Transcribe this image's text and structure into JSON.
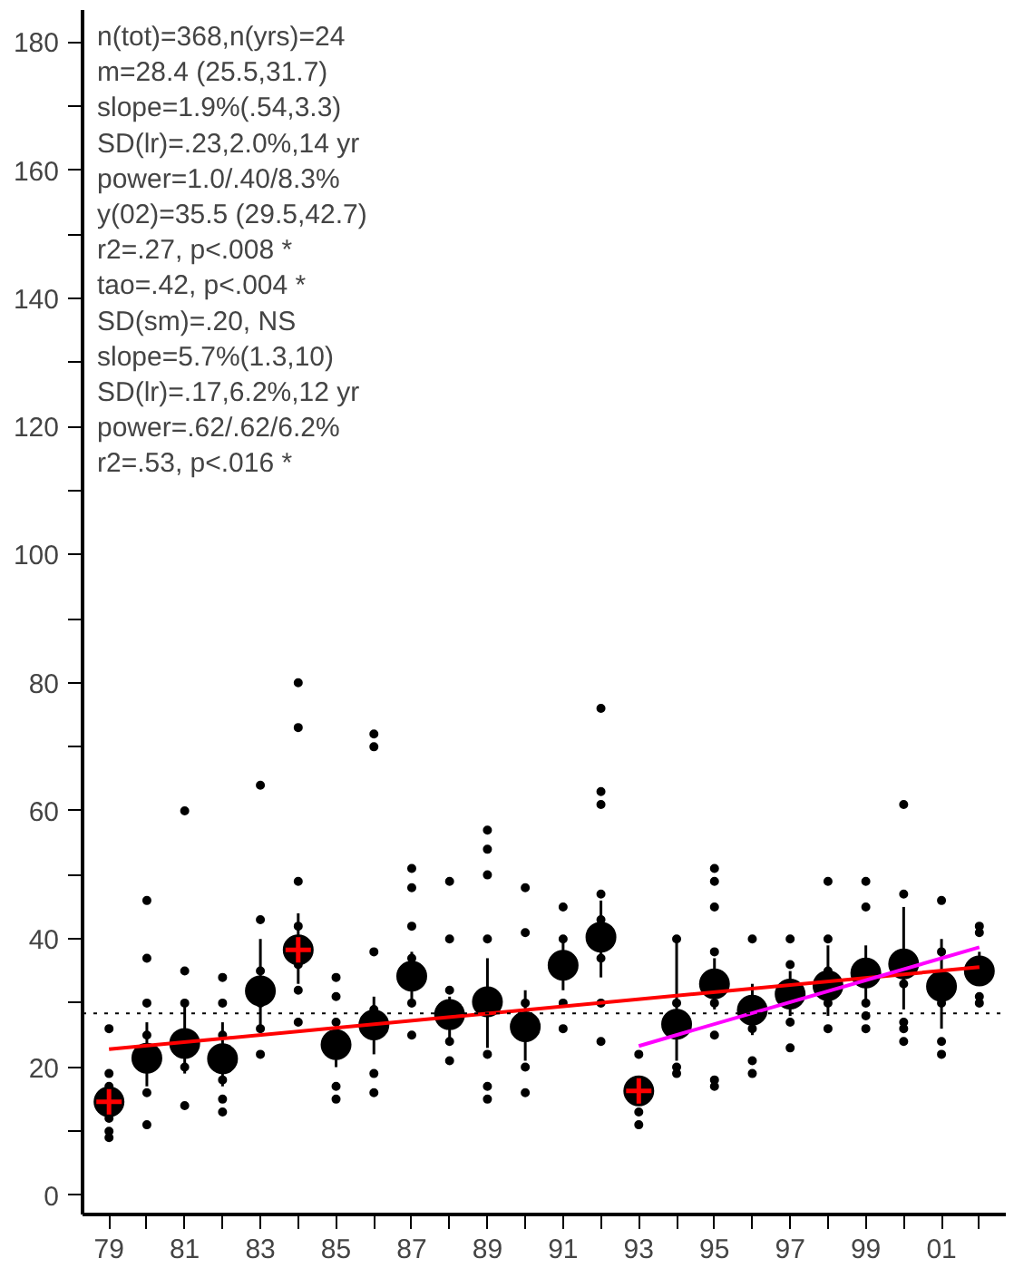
{
  "chart_data": {
    "type": "scatter",
    "annotations": [
      "n(tot)=368,n(yrs)=24",
      "m=28.4 (25.5,31.7)",
      "slope=1.9%(.54,3.3)",
      "SD(lr)=.23,2.0%,14 yr",
      "power=1.0/.40/8.3%",
      "y(02)=35.5 (29.5,42.7)",
      "r2=.27, p<.008 *",
      "tao=.42, p<.004 *",
      "SD(sm)=.20, NS",
      "slope=5.7%(1.3,10)",
      "SD(lr)=.17,6.2%,12 yr",
      "power=.62/.62/6.2%",
      "r2=.53, p<.016 *"
    ],
    "xlim": [
      1978.3,
      2002.7
    ],
    "ylim": [
      -3,
      185
    ],
    "xticks": [
      {
        "value": 1979,
        "label": "79"
      },
      {
        "value": 1980,
        "label": null
      },
      {
        "value": 1981,
        "label": "81"
      },
      {
        "value": 1982,
        "label": null
      },
      {
        "value": 1983,
        "label": "83"
      },
      {
        "value": 1984,
        "label": null
      },
      {
        "value": 1985,
        "label": "85"
      },
      {
        "value": 1986,
        "label": null
      },
      {
        "value": 1987,
        "label": "87"
      },
      {
        "value": 1988,
        "label": null
      },
      {
        "value": 1989,
        "label": "89"
      },
      {
        "value": 1990,
        "label": null
      },
      {
        "value": 1991,
        "label": "91"
      },
      {
        "value": 1992,
        "label": null
      },
      {
        "value": 1993,
        "label": "93"
      },
      {
        "value": 1994,
        "label": null
      },
      {
        "value": 1995,
        "label": "95"
      },
      {
        "value": 1996,
        "label": null
      },
      {
        "value": 1997,
        "label": "97"
      },
      {
        "value": 1998,
        "label": null
      },
      {
        "value": 1999,
        "label": "99"
      },
      {
        "value": 2000,
        "label": null
      },
      {
        "value": 2001,
        "label": "01"
      },
      {
        "value": 2002,
        "label": null
      }
    ],
    "yticks": [
      0,
      {
        "value": 10,
        "label": null
      },
      20,
      {
        "value": 30,
        "label": null
      },
      40,
      {
        "value": 50,
        "label": null
      },
      60,
      {
        "value": 70,
        "label": null
      },
      80,
      {
        "value": 90,
        "label": null
      },
      100,
      {
        "value": 110,
        "label": null
      },
      120,
      {
        "value": 130,
        "label": null
      },
      140,
      {
        "value": 150,
        "label": null
      },
      160,
      {
        "value": 170,
        "label": null
      },
      180
    ],
    "ref_lines": [
      {
        "axis": "y",
        "value": 28.4,
        "color": "#000000",
        "line_style": "dotted"
      }
    ],
    "series": [
      {
        "marker": "circle",
        "color": "#000000",
        "x": [
          1979,
          1979,
          1979,
          1979,
          1979,
          1979,
          1980,
          1980,
          1980,
          1980,
          1980,
          1980,
          1981,
          1981,
          1981,
          1981,
          1981,
          1982,
          1982,
          1982,
          1982,
          1982,
          1982,
          1983,
          1983,
          1983,
          1983,
          1983,
          1983,
          1984,
          1984,
          1984,
          1984,
          1984,
          1984,
          1984,
          1985,
          1985,
          1985,
          1985,
          1985,
          1986,
          1986,
          1986,
          1986,
          1986,
          1986,
          1987,
          1987,
          1987,
          1987,
          1987,
          1987,
          1988,
          1988,
          1988,
          1988,
          1988,
          1989,
          1989,
          1989,
          1989,
          1989,
          1989,
          1989,
          1990,
          1990,
          1990,
          1990,
          1990,
          1991,
          1991,
          1991,
          1991,
          1992,
          1992,
          1992,
          1992,
          1992,
          1992,
          1992,
          1992,
          1993,
          1993,
          1993,
          1994,
          1994,
          1994,
          1994,
          1995,
          1995,
          1995,
          1995,
          1995,
          1995,
          1995,
          1995,
          1996,
          1996,
          1996,
          1996,
          1997,
          1997,
          1997,
          1997,
          1998,
          1998,
          1998,
          1998,
          1998,
          1999,
          1999,
          1999,
          1999,
          1999,
          2000,
          2000,
          2000,
          2000,
          2000,
          2000,
          2001,
          2001,
          2001,
          2001,
          2001,
          2002,
          2002,
          2002,
          2002
        ],
        "values": [
          9,
          10,
          12,
          17,
          19,
          26,
          11,
          16,
          25,
          30,
          37,
          46,
          14,
          20,
          30,
          35,
          60,
          13,
          15,
          18,
          25,
          30,
          34,
          22,
          26,
          30,
          35,
          43,
          64,
          27,
          32,
          36,
          42,
          49,
          73,
          80,
          15,
          17,
          27,
          31,
          34,
          16,
          19,
          29,
          38,
          70,
          72,
          25,
          30,
          37,
          42,
          48,
          51,
          21,
          24,
          32,
          40,
          49,
          15,
          17,
          22,
          40,
          50,
          54,
          57,
          16,
          20,
          30,
          41,
          48,
          26,
          30,
          40,
          45,
          24,
          30,
          37,
          43,
          47,
          61,
          63,
          76,
          11,
          13,
          22,
          19,
          20,
          30,
          40,
          17,
          18,
          25,
          30,
          38,
          45,
          49,
          51,
          19,
          21,
          26,
          40,
          23,
          27,
          36,
          40,
          26,
          30,
          35,
          40,
          49,
          26,
          28,
          30,
          45,
          49,
          24,
          26,
          27,
          33,
          47,
          61,
          22,
          24,
          30,
          38,
          46,
          30,
          31,
          41,
          42
        ]
      },
      {
        "marker": "circle",
        "color": "#000000",
        "x": [
          1979,
          1980,
          1981,
          1982,
          1983,
          1984,
          1985,
          1986,
          1987,
          1988,
          1989,
          1990,
          1991,
          1992,
          1993,
          1994,
          1995,
          1996,
          1997,
          1998,
          1999,
          2000,
          2001,
          2002
        ],
        "values": [
          14.6,
          21.4,
          23.7,
          21.3,
          31.9,
          38.3,
          23.5,
          26.6,
          34.2,
          28.2,
          30.2,
          26.3,
          35.9,
          40.3,
          16.3,
          26.7,
          33.0,
          28.9,
          31.4,
          32.7,
          34.7,
          36.1,
          32.6,
          35.0
        ],
        "errors": [
          null,
          [
            17,
            27
          ],
          [
            19,
            30
          ],
          [
            17,
            27
          ],
          [
            26,
            40
          ],
          [
            33,
            44
          ],
          [
            20,
            27
          ],
          [
            22,
            31
          ],
          [
            30,
            38
          ],
          [
            24,
            31
          ],
          [
            23,
            37
          ],
          [
            21,
            32
          ],
          [
            32,
            40
          ],
          [
            34,
            46
          ],
          null,
          [
            21,
            40
          ],
          [
            29,
            37
          ],
          [
            25,
            33
          ],
          [
            28,
            35
          ],
          [
            28,
            39
          ],
          [
            30,
            39
          ],
          [
            29,
            45
          ],
          [
            26,
            40
          ],
          [
            33,
            38
          ]
        ]
      },
      {
        "marker": "cross",
        "color": "#ff0000",
        "x": [
          1979,
          1984,
          1993
        ],
        "values": [
          14.6,
          38.3,
          16.3
        ]
      },
      {
        "type": "line",
        "color": "#ff0000",
        "x": [
          1979,
          2002
        ],
        "values": [
          22.8,
          35.6
        ]
      },
      {
        "type": "line",
        "color": "#ff00ff",
        "x": [
          1993,
          2002
        ],
        "values": [
          23.3,
          38.7
        ]
      }
    ]
  }
}
